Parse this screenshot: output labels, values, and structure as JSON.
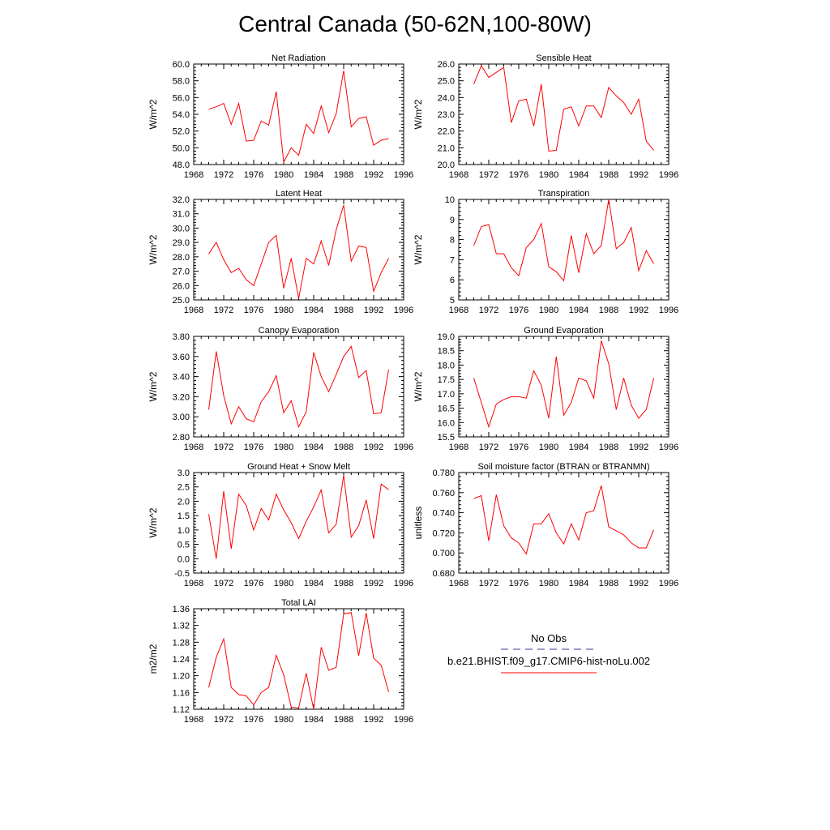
{
  "figure": {
    "title": "Central Canada (50-62N,100-80W)"
  },
  "legend": {
    "entries": [
      {
        "label": "No Obs",
        "color": "#3a3a9a",
        "dash": true
      },
      {
        "label": "b.e21.BHIST.f09_g17.CMIP6-hist-noLu.002",
        "color": "#ff0000",
        "dash": false
      }
    ]
  },
  "chart_data": [
    {
      "type": "line",
      "title": "Net Radiation",
      "ylabel": "W/m^2",
      "xlim": [
        1968,
        1996
      ],
      "ylim": [
        48,
        60
      ],
      "xticks": [
        1968,
        1972,
        1976,
        1980,
        1984,
        1988,
        1992,
        1996
      ],
      "yticks": [
        "48.0",
        "50.0",
        "52.0",
        "54.0",
        "56.0",
        "58.0",
        "60.0"
      ],
      "x": [
        1970,
        1971,
        1972,
        1973,
        1974,
        1975,
        1976,
        1977,
        1978,
        1979,
        1980,
        1981,
        1982,
        1983,
        1984,
        1985,
        1986,
        1987,
        1988,
        1989,
        1990,
        1991,
        1992,
        1993,
        1994
      ],
      "series": [
        {
          "color": "#ff0000",
          "values": [
            54.6,
            54.9,
            55.3,
            52.8,
            55.3,
            50.8,
            50.9,
            53.2,
            52.7,
            56.7,
            48.3,
            50.0,
            49.1,
            52.8,
            51.7,
            55.0,
            51.8,
            54.1,
            59.2,
            52.5,
            53.5,
            53.7,
            50.3,
            50.9,
            51.1
          ]
        }
      ]
    },
    {
      "type": "line",
      "title": "Sensible Heat",
      "ylabel": "W/m^2",
      "xlim": [
        1968,
        1996
      ],
      "ylim": [
        20,
        26
      ],
      "xticks": [
        1968,
        1972,
        1976,
        1980,
        1984,
        1988,
        1992,
        1996
      ],
      "yticks": [
        "20.0",
        "21.0",
        "22.0",
        "23.0",
        "24.0",
        "25.0",
        "26.0"
      ],
      "x": [
        1970,
        1971,
        1972,
        1973,
        1974,
        1975,
        1976,
        1977,
        1978,
        1979,
        1980,
        1981,
        1982,
        1983,
        1984,
        1985,
        1986,
        1987,
        1988,
        1989,
        1990,
        1991,
        1992,
        1993,
        1994
      ],
      "series": [
        {
          "color": "#ff0000",
          "values": [
            24.8,
            25.9,
            25.2,
            25.5,
            25.8,
            22.5,
            23.8,
            23.9,
            22.3,
            24.8,
            20.8,
            20.85,
            23.3,
            23.45,
            22.3,
            23.5,
            23.5,
            22.8,
            24.6,
            24.1,
            23.7,
            23.0,
            23.9,
            21.4,
            20.85
          ]
        }
      ]
    },
    {
      "type": "line",
      "title": "Latent Heat",
      "ylabel": "W/m^2",
      "xlim": [
        1968,
        1996
      ],
      "ylim": [
        25,
        32
      ],
      "xticks": [
        1968,
        1972,
        1976,
        1980,
        1984,
        1988,
        1992,
        1996
      ],
      "yticks": [
        "25.0",
        "26.0",
        "27.0",
        "28.0",
        "29.0",
        "30.0",
        "31.0",
        "32.0"
      ],
      "x": [
        1970,
        1971,
        1972,
        1973,
        1974,
        1975,
        1976,
        1977,
        1978,
        1979,
        1980,
        1981,
        1982,
        1983,
        1984,
        1985,
        1986,
        1987,
        1988,
        1989,
        1990,
        1991,
        1992,
        1993,
        1994
      ],
      "series": [
        {
          "color": "#ff0000",
          "values": [
            28.2,
            29.0,
            27.8,
            26.9,
            27.2,
            26.4,
            26.0,
            27.5,
            29.0,
            29.5,
            25.8,
            27.9,
            25.1,
            27.9,
            27.5,
            29.1,
            27.4,
            29.9,
            31.6,
            27.7,
            28.75,
            28.65,
            25.6,
            26.9,
            27.9
          ]
        }
      ]
    },
    {
      "type": "line",
      "title": "Transpiration",
      "ylabel": "W/m^2",
      "xlim": [
        1968,
        1996
      ],
      "ylim": [
        5,
        10
      ],
      "xticks": [
        1968,
        1972,
        1976,
        1980,
        1984,
        1988,
        1992,
        1996
      ],
      "yticks": [
        "5",
        "6",
        "7",
        "8",
        "9",
        "10"
      ],
      "x": [
        1970,
        1971,
        1972,
        1973,
        1974,
        1975,
        1976,
        1977,
        1978,
        1979,
        1980,
        1981,
        1982,
        1983,
        1984,
        1985,
        1986,
        1987,
        1988,
        1989,
        1990,
        1991,
        1992,
        1993,
        1994
      ],
      "series": [
        {
          "color": "#ff0000",
          "values": [
            7.7,
            8.65,
            8.75,
            7.3,
            7.3,
            6.6,
            6.2,
            7.6,
            8.0,
            8.8,
            6.65,
            6.4,
            5.95,
            8.2,
            6.35,
            8.3,
            7.3,
            7.7,
            10.0,
            7.55,
            7.85,
            8.6,
            6.45,
            7.45,
            6.8
          ]
        }
      ]
    },
    {
      "type": "line",
      "title": "Canopy Evaporation",
      "ylabel": "W/m^2",
      "xlim": [
        1968,
        1996
      ],
      "ylim": [
        2.8,
        3.8
      ],
      "xticks": [
        1968,
        1972,
        1976,
        1980,
        1984,
        1988,
        1992,
        1996
      ],
      "yticks": [
        "2.80",
        "3.00",
        "3.20",
        "3.40",
        "3.60",
        "3.80"
      ],
      "x": [
        1970,
        1971,
        1972,
        1973,
        1974,
        1975,
        1976,
        1977,
        1978,
        1979,
        1980,
        1981,
        1982,
        1983,
        1984,
        1985,
        1986,
        1987,
        1988,
        1989,
        1990,
        1991,
        1992,
        1993,
        1994
      ],
      "series": [
        {
          "color": "#ff0000",
          "values": [
            3.07,
            3.65,
            3.21,
            2.93,
            3.1,
            2.98,
            2.95,
            3.15,
            3.25,
            3.41,
            3.04,
            3.16,
            2.9,
            3.05,
            3.64,
            3.4,
            3.25,
            3.42,
            3.6,
            3.7,
            3.39,
            3.46,
            3.03,
            3.04,
            3.47
          ]
        }
      ]
    },
    {
      "type": "line",
      "title": "Ground Evaporation",
      "ylabel": "W/m^2",
      "xlim": [
        1968,
        1996
      ],
      "ylim": [
        15.5,
        19
      ],
      "xticks": [
        1968,
        1972,
        1976,
        1980,
        1984,
        1988,
        1992,
        1996
      ],
      "yticks": [
        "15.5",
        "16.0",
        "16.5",
        "17.0",
        "17.5",
        "18.0",
        "18.5",
        "19.0"
      ],
      "x": [
        1970,
        1971,
        1972,
        1973,
        1974,
        1975,
        1976,
        1977,
        1978,
        1979,
        1980,
        1981,
        1982,
        1983,
        1984,
        1985,
        1986,
        1987,
        1988,
        1989,
        1990,
        1991,
        1992,
        1993,
        1994
      ],
      "series": [
        {
          "color": "#ff0000",
          "values": [
            17.55,
            16.7,
            15.85,
            16.65,
            16.8,
            16.9,
            16.9,
            16.85,
            17.8,
            17.3,
            16.15,
            18.3,
            16.25,
            16.7,
            17.55,
            17.45,
            16.85,
            18.85,
            18.05,
            16.45,
            17.55,
            16.6,
            16.15,
            16.45,
            17.55
          ]
        }
      ]
    },
    {
      "type": "line",
      "title": "Ground Heat + Snow Melt",
      "ylabel": "W/m^2",
      "xlim": [
        1968,
        1996
      ],
      "ylim": [
        -0.5,
        3
      ],
      "xticks": [
        1968,
        1972,
        1976,
        1980,
        1984,
        1988,
        1992,
        1996
      ],
      "yticks": [
        "-0.5",
        "0.0",
        "0.5",
        "1.0",
        "1.5",
        "2.0",
        "2.5",
        "3.0"
      ],
      "x": [
        1970,
        1971,
        1972,
        1973,
        1974,
        1975,
        1976,
        1977,
        1978,
        1979,
        1980,
        1981,
        1982,
        1983,
        1984,
        1985,
        1986,
        1987,
        1988,
        1989,
        1990,
        1991,
        1992,
        1993,
        1994
      ],
      "series": [
        {
          "color": "#ff0000",
          "values": [
            1.55,
            0.0,
            2.35,
            0.35,
            2.25,
            1.85,
            1.0,
            1.75,
            1.35,
            2.25,
            1.7,
            1.25,
            0.7,
            1.3,
            1.8,
            2.4,
            0.9,
            1.2,
            2.9,
            0.75,
            1.15,
            2.05,
            0.7,
            2.6,
            2.4
          ]
        }
      ]
    },
    {
      "type": "line",
      "title": "Soil moisture factor (BTRAN or BTRANMN)",
      "ylabel": "unitless",
      "xlim": [
        1968,
        1996
      ],
      "ylim": [
        0.68,
        0.78
      ],
      "xticks": [
        1968,
        1972,
        1976,
        1980,
        1984,
        1988,
        1992,
        1996
      ],
      "yticks": [
        "0.680",
        "0.700",
        "0.720",
        "0.740",
        "0.760",
        "0.780"
      ],
      "x": [
        1970,
        1971,
        1972,
        1973,
        1974,
        1975,
        1976,
        1977,
        1978,
        1979,
        1980,
        1981,
        1982,
        1983,
        1984,
        1985,
        1986,
        1987,
        1988,
        1989,
        1990,
        1991,
        1992,
        1993,
        1994
      ],
      "series": [
        {
          "color": "#ff0000",
          "values": [
            0.754,
            0.757,
            0.712,
            0.758,
            0.727,
            0.715,
            0.71,
            0.699,
            0.729,
            0.729,
            0.739,
            0.72,
            0.709,
            0.729,
            0.713,
            0.74,
            0.742,
            0.767,
            0.726,
            0.722,
            0.718,
            0.71,
            0.705,
            0.705,
            0.723
          ]
        }
      ]
    },
    {
      "type": "line",
      "title": "Total LAI",
      "ylabel": "m2/m2",
      "xlim": [
        1968,
        1996
      ],
      "ylim": [
        1.12,
        1.36
      ],
      "xticks": [
        1968,
        1972,
        1976,
        1980,
        1984,
        1988,
        1992,
        1996
      ],
      "yticks": [
        "1.12",
        "1.16",
        "1.20",
        "1.24",
        "1.28",
        "1.32",
        "1.36"
      ],
      "x": [
        1970,
        1971,
        1972,
        1973,
        1974,
        1975,
        1976,
        1977,
        1978,
        1979,
        1980,
        1981,
        1982,
        1983,
        1984,
        1985,
        1986,
        1987,
        1988,
        1989,
        1990,
        1991,
        1992,
        1993,
        1994
      ],
      "series": [
        {
          "color": "#ff0000",
          "values": [
            1.172,
            1.244,
            1.288,
            1.172,
            1.155,
            1.152,
            1.13,
            1.16,
            1.172,
            1.249,
            1.202,
            1.125,
            1.123,
            1.206,
            1.12,
            1.268,
            1.213,
            1.22,
            1.348,
            1.351,
            1.248,
            1.35,
            1.242,
            1.225,
            1.161
          ]
        }
      ]
    }
  ]
}
